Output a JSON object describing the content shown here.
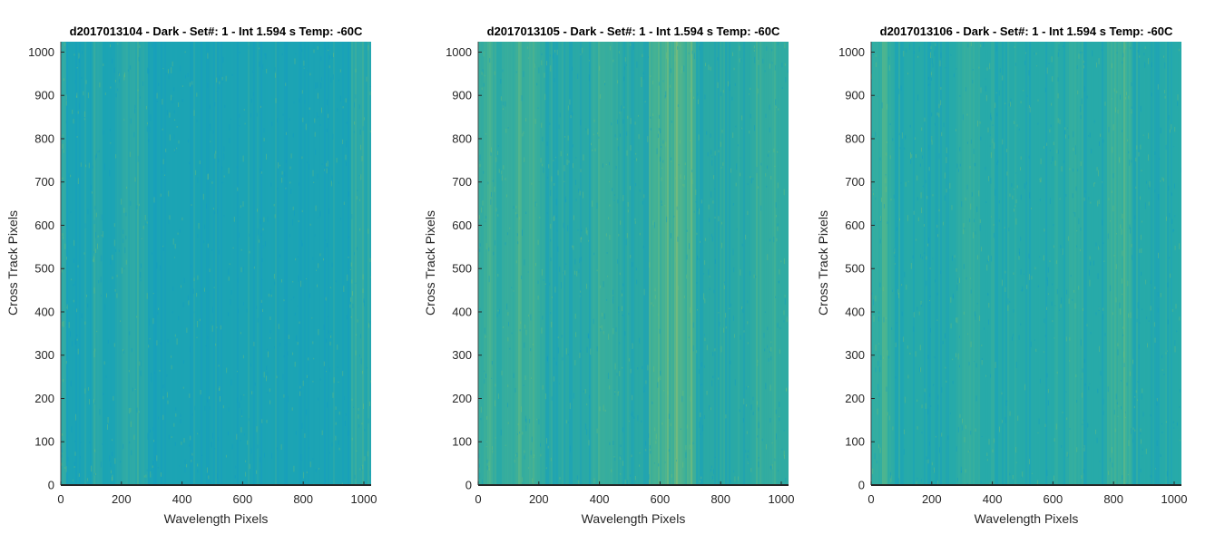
{
  "chart_data": [
    {
      "type": "heatmap",
      "title": "d2017013104 - Dark - Set#: 1 - Int 1.594 s Temp: -60C",
      "xlabel": "Wavelength Pixels",
      "ylabel": "Cross Track Pixels",
      "xlim": [
        0,
        1024
      ],
      "ylim": [
        0,
        1024
      ],
      "xticks": [
        0,
        200,
        400,
        600,
        800,
        1000
      ],
      "yticks": [
        0,
        100,
        200,
        300,
        400,
        500,
        600,
        700,
        800,
        900,
        1000
      ],
      "colormap": "parula",
      "base_color": "#1ca4b4",
      "bright_bands": [
        {
          "x_start": 0,
          "x_end": 20,
          "strength": 0.5
        },
        {
          "x_start": 100,
          "x_end": 140,
          "strength": 0.35
        },
        {
          "x_start": 180,
          "x_end": 280,
          "strength": 0.5
        },
        {
          "x_start": 960,
          "x_end": 1024,
          "strength": 0.4
        }
      ]
    },
    {
      "type": "heatmap",
      "title": "d2017013105 - Dark - Set#: 1 - Int 1.594 s Temp: -60C",
      "xlabel": "Wavelength Pixels",
      "ylabel": "Cross Track Pixels",
      "xlim": [
        0,
        1024
      ],
      "ylim": [
        0,
        1024
      ],
      "xticks": [
        0,
        200,
        400,
        600,
        800,
        1000
      ],
      "yticks": [
        0,
        100,
        200,
        300,
        400,
        500,
        600,
        700,
        800,
        900,
        1000
      ],
      "colormap": "parula",
      "base_color": "#2aa9a6",
      "bright_bands": [
        {
          "x_start": 0,
          "x_end": 60,
          "strength": 0.7
        },
        {
          "x_start": 80,
          "x_end": 220,
          "strength": 0.55
        },
        {
          "x_start": 380,
          "x_end": 460,
          "strength": 0.5
        },
        {
          "x_start": 560,
          "x_end": 720,
          "strength": 1.0
        },
        {
          "x_start": 900,
          "x_end": 1024,
          "strength": 0.35
        }
      ]
    },
    {
      "type": "heatmap",
      "title": "d2017013106 - Dark - Set#: 1 - Int 1.594 s Temp: -60C",
      "xlabel": "Wavelength Pixels",
      "ylabel": "Cross Track Pixels",
      "xlim": [
        0,
        1024
      ],
      "ylim": [
        0,
        1024
      ],
      "xticks": [
        0,
        200,
        400,
        600,
        800,
        1000
      ],
      "yticks": [
        0,
        100,
        200,
        300,
        400,
        500,
        600,
        700,
        800,
        900,
        1000
      ],
      "colormap": "parula",
      "base_color": "#27aaa9",
      "bright_bands": [
        {
          "x_start": 0,
          "x_end": 80,
          "strength": 0.45
        },
        {
          "x_start": 280,
          "x_end": 360,
          "strength": 0.4
        },
        {
          "x_start": 640,
          "x_end": 700,
          "strength": 0.35
        },
        {
          "x_start": 780,
          "x_end": 860,
          "strength": 0.7
        }
      ]
    }
  ]
}
